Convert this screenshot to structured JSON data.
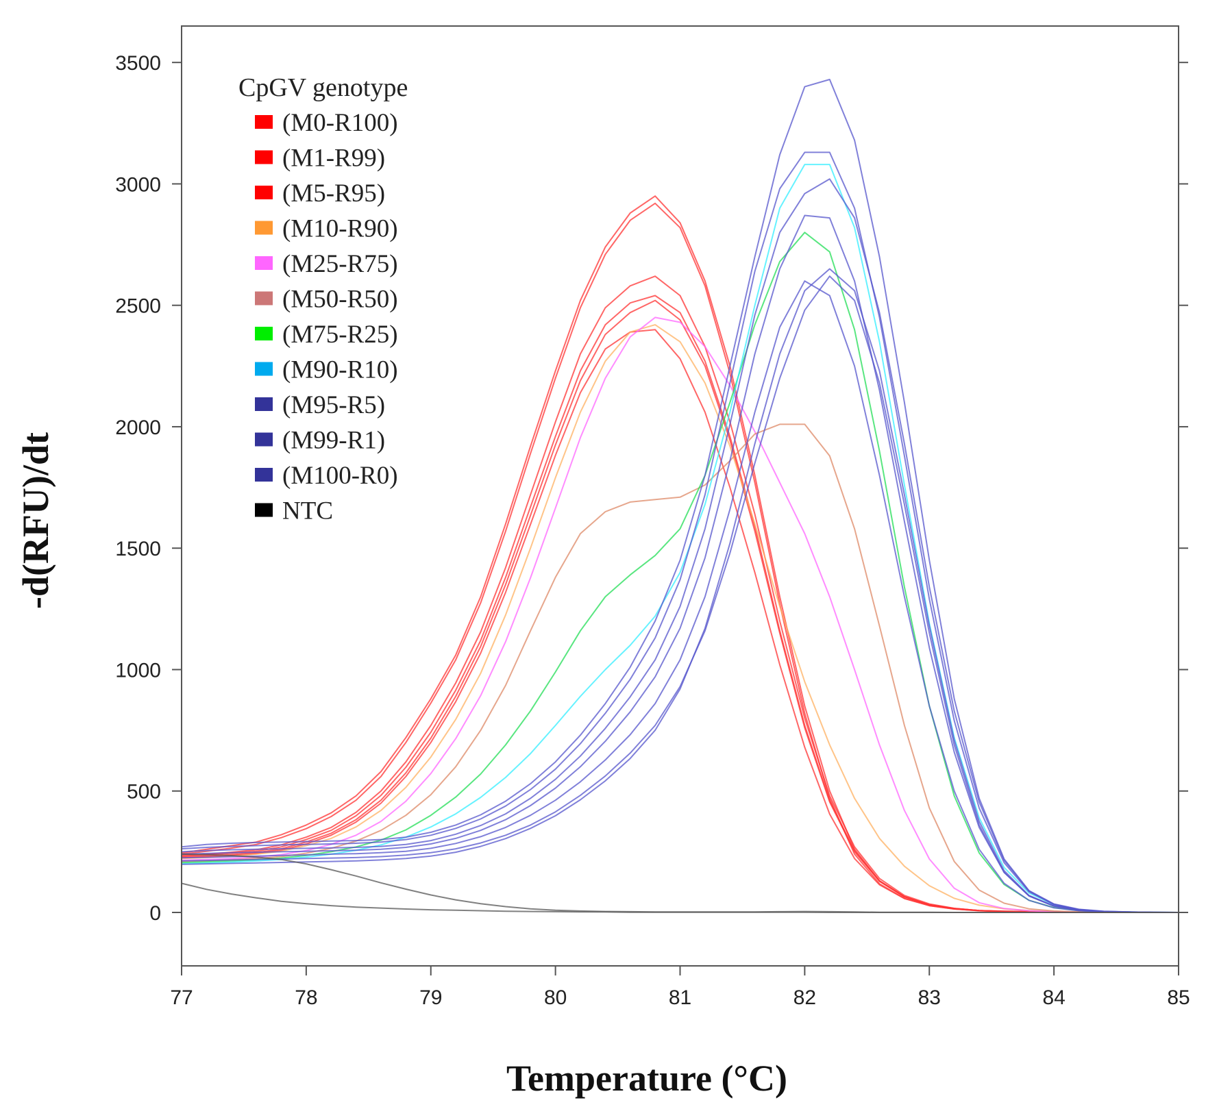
{
  "chart_data": {
    "type": "line",
    "title": "",
    "xlabel": "Temperature (°C)",
    "ylabel": "-d(RFU)/dt",
    "xlim": [
      77,
      85
    ],
    "ylim": [
      -220,
      3650
    ],
    "x_ticks": [
      77,
      78,
      79,
      80,
      81,
      82,
      83,
      84,
      85
    ],
    "y_ticks": [
      0,
      500,
      1000,
      1500,
      2000,
      2500,
      3000,
      3500
    ],
    "grid": false,
    "legend_title": "CpGV genotype",
    "legend_position": "top-left",
    "legend": [
      {
        "label": "(M0-R100)",
        "color": "#ff0000"
      },
      {
        "label": "(M1-R99)",
        "color": "#ff0000"
      },
      {
        "label": "(M5-R95)",
        "color": "#ff0000"
      },
      {
        "label": "(M10-R90)",
        "color": "#ff9933"
      },
      {
        "label": "(M25-R75)",
        "color": "#ff66ff"
      },
      {
        "label": "(M50-R50)",
        "color": "#cc7777"
      },
      {
        "label": "(M75-R25)",
        "color": "#00ee00"
      },
      {
        "label": "(M90-R10)",
        "color": "#00aaee"
      },
      {
        "label": "(M95-R5)",
        "color": "#333399"
      },
      {
        "label": "(M99-R1)",
        "color": "#333399"
      },
      {
        "label": "(M100-R0)",
        "color": "#333399"
      },
      {
        "label": "NTC",
        "color": "#000000"
      }
    ],
    "x": [
      77.0,
      77.2,
      77.4,
      77.6,
      77.8,
      78.0,
      78.2,
      78.4,
      78.6,
      78.8,
      79.0,
      79.2,
      79.4,
      79.6,
      79.8,
      80.0,
      80.2,
      80.4,
      80.6,
      80.8,
      81.0,
      81.2,
      81.4,
      81.6,
      81.8,
      82.0,
      82.2,
      82.4,
      82.6,
      82.8,
      83.0,
      83.2,
      83.4,
      83.6,
      83.8,
      84.0,
      84.2,
      84.4,
      84.6,
      84.8,
      85.0
    ],
    "series": [
      {
        "name": "(M0-R100)",
        "color": "#ff3333",
        "values": [
          245,
          260,
          275,
          290,
          320,
          360,
          410,
          480,
          580,
          720,
          880,
          1060,
          1300,
          1600,
          1920,
          2230,
          2520,
          2740,
          2880,
          2950,
          2840,
          2600,
          2250,
          1800,
          1300,
          850,
          500,
          260,
          130,
          65,
          32,
          16,
          8,
          5,
          3,
          2,
          1,
          1,
          0,
          0,
          0
        ]
      },
      {
        "name": "(M0-R100)",
        "color": "#ff3333",
        "values": [
          240,
          252,
          265,
          280,
          308,
          345,
          395,
          462,
          560,
          700,
          862,
          1040,
          1275,
          1570,
          1890,
          2200,
          2490,
          2710,
          2850,
          2920,
          2820,
          2580,
          2220,
          1770,
          1270,
          820,
          470,
          240,
          118,
          58,
          28,
          14,
          7,
          4,
          2,
          1,
          1,
          0,
          0,
          0,
          0
        ]
      },
      {
        "name": "(M1-R99)",
        "color": "#ff3333",
        "values": [
          235,
          240,
          248,
          258,
          278,
          310,
          350,
          412,
          500,
          620,
          770,
          945,
          1155,
          1420,
          1720,
          2020,
          2300,
          2490,
          2580,
          2620,
          2540,
          2330,
          2020,
          1640,
          1200,
          800,
          480,
          270,
          140,
          70,
          35,
          17,
          8,
          5,
          3,
          2,
          1,
          1,
          0,
          0,
          0
        ]
      },
      {
        "name": "(M1-R99)",
        "color": "#ff3333",
        "values": [
          232,
          236,
          244,
          252,
          270,
          300,
          338,
          398,
          482,
          598,
          742,
          915,
          1120,
          1380,
          1670,
          1960,
          2230,
          2420,
          2510,
          2540,
          2470,
          2270,
          1960,
          1590,
          1160,
          770,
          460,
          255,
          130,
          65,
          32,
          16,
          8,
          4,
          2,
          1,
          1,
          0,
          0,
          0,
          0
        ]
      },
      {
        "name": "(M5-R95)",
        "color": "#ff3333",
        "values": [
          228,
          232,
          238,
          246,
          262,
          290,
          326,
          382,
          462,
          575,
          718,
          890,
          1095,
          1350,
          1635,
          1925,
          2190,
          2380,
          2470,
          2520,
          2440,
          2250,
          1945,
          1570,
          1150,
          760,
          455,
          250,
          128,
          64,
          32,
          16,
          8,
          4,
          2,
          1,
          1,
          0,
          0,
          0,
          0
        ]
      },
      {
        "name": "(M5-R95)",
        "color": "#ff3333",
        "values": [
          225,
          228,
          234,
          242,
          256,
          282,
          318,
          372,
          450,
          560,
          700,
          868,
          1068,
          1318,
          1598,
          1882,
          2140,
          2320,
          2390,
          2400,
          2280,
          2060,
          1750,
          1400,
          1020,
          680,
          405,
          222,
          114,
          57,
          28,
          14,
          7,
          4,
          2,
          1,
          1,
          0,
          0,
          0,
          0
        ]
      },
      {
        "name": "(M10-R90)",
        "color": "#ffb060",
        "values": [
          222,
          226,
          232,
          240,
          252,
          275,
          305,
          352,
          420,
          515,
          640,
          795,
          985,
          1225,
          1500,
          1790,
          2060,
          2270,
          2390,
          2420,
          2350,
          2180,
          1920,
          1600,
          1260,
          950,
          690,
          470,
          305,
          190,
          110,
          58,
          30,
          15,
          8,
          4,
          2,
          1,
          0,
          0,
          0
        ]
      },
      {
        "name": "(M25-R75)",
        "color": "#ff66ff",
        "values": [
          215,
          218,
          222,
          228,
          238,
          255,
          280,
          318,
          375,
          458,
          572,
          716,
          893,
          1115,
          1378,
          1665,
          1955,
          2200,
          2370,
          2450,
          2430,
          2330,
          2170,
          1980,
          1770,
          1560,
          1300,
          1000,
          690,
          420,
          220,
          100,
          40,
          16,
          7,
          3,
          1,
          1,
          0,
          0,
          0
        ]
      },
      {
        "name": "(M50-R50)",
        "color": "#dd8866",
        "values": [
          210,
          213,
          217,
          222,
          230,
          244,
          264,
          294,
          338,
          400,
          485,
          600,
          750,
          935,
          1160,
          1380,
          1560,
          1650,
          1690,
          1700,
          1710,
          1760,
          1860,
          1970,
          2010,
          2010,
          1880,
          1580,
          1180,
          770,
          430,
          210,
          92,
          38,
          15,
          6,
          2,
          1,
          0,
          0,
          0
        ]
      },
      {
        "name": "(M75-R25)",
        "color": "#22dd55",
        "values": [
          205,
          208,
          212,
          217,
          224,
          235,
          250,
          270,
          298,
          340,
          400,
          475,
          570,
          690,
          830,
          990,
          1160,
          1300,
          1390,
          1470,
          1580,
          1800,
          2100,
          2420,
          2680,
          2800,
          2720,
          2400,
          1900,
          1340,
          850,
          480,
          245,
          115,
          50,
          20,
          8,
          3,
          1,
          0,
          0
        ]
      },
      {
        "name": "(M90-R10)",
        "color": "#33eeff",
        "values": [
          200,
          203,
          207,
          212,
          218,
          228,
          240,
          256,
          278,
          310,
          352,
          406,
          474,
          556,
          654,
          770,
          890,
          1000,
          1100,
          1220,
          1400,
          1680,
          2060,
          2500,
          2900,
          3080,
          3080,
          2820,
          2350,
          1760,
          1190,
          720,
          390,
          185,
          80,
          32,
          12,
          4,
          2,
          1,
          0
        ]
      },
      {
        "name": "(M95-R5)",
        "color": "#5555cc",
        "values": [
          270,
          280,
          285,
          288,
          290,
          292,
          294,
          296,
          300,
          310,
          330,
          360,
          402,
          458,
          530,
          620,
          730,
          860,
          1010,
          1200,
          1450,
          1800,
          2250,
          2700,
          3120,
          3400,
          3430,
          3180,
          2700,
          2100,
          1450,
          880,
          470,
          220,
          90,
          35,
          13,
          5,
          2,
          1,
          0
        ]
      },
      {
        "name": "(M95-R5)",
        "color": "#5555cc",
        "values": [
          262,
          268,
          272,
          275,
          278,
          280,
          282,
          285,
          290,
          300,
          318,
          346,
          385,
          438,
          506,
          590,
          695,
          820,
          960,
          1130,
          1370,
          1720,
          2180,
          2640,
          2980,
          3130,
          3130,
          2900,
          2450,
          1880,
          1290,
          790,
          430,
          205,
          85,
          33,
          12,
          4,
          2,
          1,
          0
        ]
      },
      {
        "name": "(M99-R1)",
        "color": "#5555cc",
        "values": [
          250,
          255,
          258,
          260,
          262,
          264,
          266,
          268,
          272,
          280,
          296,
          322,
          358,
          406,
          470,
          548,
          644,
          758,
          888,
          1040,
          1260,
          1580,
          2010,
          2460,
          2800,
          2960,
          3020,
          2860,
          2470,
          1930,
          1340,
          830,
          455,
          215,
          88,
          33,
          12,
          4,
          2,
          1,
          0
        ]
      },
      {
        "name": "(M99-R1)",
        "color": "#5555cc",
        "values": [
          240,
          243,
          246,
          248,
          250,
          252,
          254,
          256,
          260,
          268,
          282,
          305,
          338,
          382,
          440,
          512,
          600,
          705,
          826,
          970,
          1170,
          1460,
          1860,
          2300,
          2650,
          2870,
          2860,
          2600,
          2150,
          1610,
          1090,
          660,
          350,
          165,
          68,
          26,
          9,
          3,
          1,
          0,
          0
        ]
      },
      {
        "name": "(M100-R0)",
        "color": "#5555cc",
        "values": [
          225,
          227,
          230,
          232,
          235,
          237,
          240,
          242,
          246,
          252,
          264,
          284,
          312,
          350,
          400,
          462,
          538,
          628,
          732,
          860,
          1040,
          1300,
          1660,
          2060,
          2410,
          2600,
          2540,
          2250,
          1800,
          1300,
          850,
          500,
          260,
          120,
          50,
          19,
          7,
          2,
          1,
          0,
          0
        ]
      },
      {
        "name": "(M100-R0)",
        "color": "#5555cc",
        "values": [
          212,
          214,
          216,
          218,
          220,
          222,
          224,
          226,
          230,
          236,
          246,
          262,
          286,
          318,
          360,
          414,
          482,
          562,
          656,
          770,
          930,
          1160,
          1480,
          1850,
          2200,
          2480,
          2620,
          2520,
          2180,
          1680,
          1150,
          690,
          360,
          165,
          68,
          26,
          9,
          3,
          1,
          0,
          0
        ]
      },
      {
        "name": "(M100-R0)",
        "color": "#5555cc",
        "values": [
          198,
          200,
          202,
          204,
          206,
          208,
          210,
          212,
          216,
          222,
          232,
          248,
          272,
          304,
          346,
          398,
          464,
          542,
          634,
          750,
          920,
          1170,
          1520,
          1930,
          2300,
          2560,
          2650,
          2560,
          2230,
          1720,
          1180,
          710,
          375,
          172,
          70,
          27,
          10,
          3,
          1,
          0,
          0
        ]
      },
      {
        "name": "NTC",
        "color": "#555555",
        "values": [
          120,
          95,
          76,
          60,
          46,
          36,
          28,
          22,
          18,
          14,
          11,
          9,
          7,
          5,
          4,
          3,
          2,
          2,
          1,
          1,
          1,
          1,
          1,
          1,
          1,
          1,
          0,
          0,
          0,
          0,
          0,
          0,
          0,
          0,
          0,
          0,
          0,
          0,
          0,
          0,
          0
        ]
      },
      {
        "name": "NTC",
        "color": "#555555",
        "values": [
          240,
          238,
          234,
          228,
          218,
          200,
          176,
          150,
          122,
          96,
          72,
          52,
          36,
          24,
          15,
          9,
          6,
          4,
          3,
          2,
          2,
          2,
          2,
          2,
          3,
          4,
          3,
          2,
          1,
          1,
          1,
          0,
          0,
          0,
          0,
          0,
          0,
          0,
          0,
          0,
          0
        ]
      }
    ]
  },
  "colors": {
    "axis": "#555555",
    "background": "#ffffff"
  }
}
